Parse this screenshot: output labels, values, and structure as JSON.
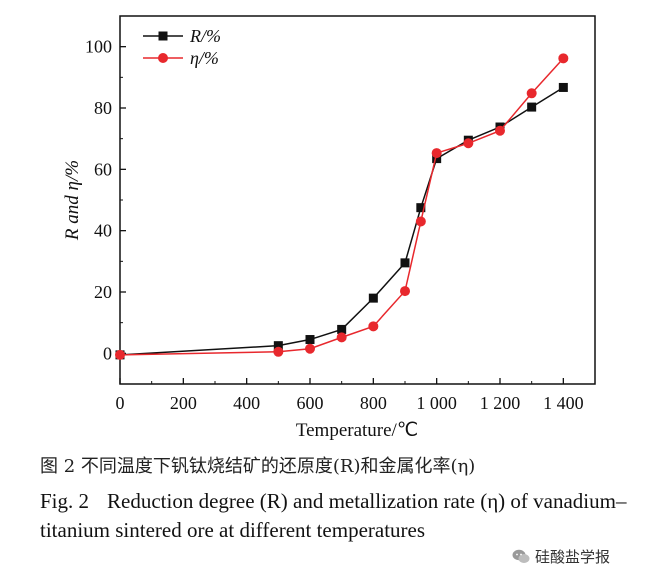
{
  "chart_data": {
    "type": "line",
    "x": [
      0,
      500,
      600,
      700,
      800,
      900,
      950,
      1000,
      1100,
      1200,
      1300,
      1400
    ],
    "series": [
      {
        "name": "R/%",
        "color": "#111111",
        "marker": "square",
        "values": [
          -0.5,
          2.5,
          4.5,
          7.8,
          18,
          29.5,
          47.5,
          63.5,
          69.5,
          73.8,
          80.3,
          86.7
        ]
      },
      {
        "name": "η/%",
        "color": "#e8282d",
        "marker": "circle",
        "values": [
          -0.5,
          0.5,
          1.5,
          5.2,
          8.8,
          20.3,
          43,
          65.3,
          68.5,
          72.6,
          84.8,
          96.2
        ]
      }
    ],
    "xlabel": "Temperature/℃",
    "ylabel": "R and η/%",
    "xlim": [
      0,
      1500
    ],
    "ylim": [
      -10,
      110
    ],
    "xticks": [
      0,
      200,
      400,
      600,
      800,
      1000,
      1200,
      1400
    ],
    "xtick_labels": [
      "0",
      "200",
      "400",
      "600",
      "800",
      "1 000",
      "1 200",
      "1 400"
    ],
    "yticks": [
      0,
      20,
      40,
      60,
      80,
      100
    ],
    "ytick_labels": [
      "0",
      "20",
      "40",
      "60",
      "80",
      "100"
    ],
    "grid": false,
    "legend_position": "top-left"
  },
  "caption": {
    "cn": "图 2   不同温度下钒钛烧结矿的还原度(R)和金属化率(η)",
    "en_label": "Fig. 2",
    "en_text": "Reduction degree (R) and metallization rate (η) of vanadium–titanium sintered ore at different temperatures"
  },
  "watermark": {
    "text": "硅酸盐学报",
    "icon": "wechat-icon"
  }
}
